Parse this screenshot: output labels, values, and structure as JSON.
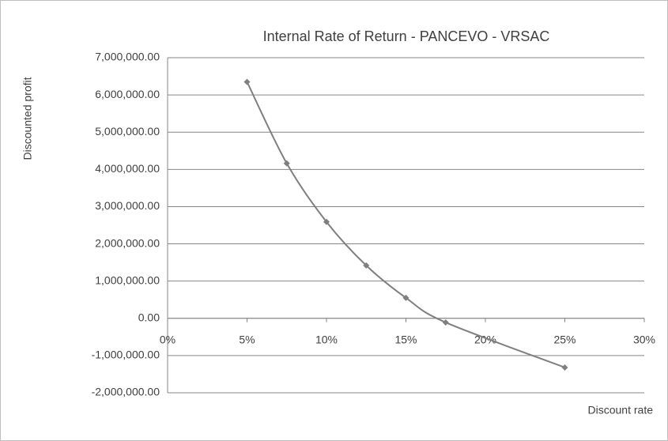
{
  "chart_data": {
    "type": "line",
    "title": "Internal Rate of Return - PANCEVO - VRSAC",
    "x_label": "Discount rate",
    "y_label": "Discounted profit",
    "x": [
      5,
      7.5,
      10,
      12.5,
      15,
      17.5,
      25
    ],
    "series": [
      {
        "color": "#7f7f7f",
        "values": [
          6350000,
          4160000,
          2590000,
          1420000,
          550000,
          -110000,
          -1320000
        ]
      }
    ],
    "xlim": [
      0,
      30
    ],
    "xticks": [
      {
        "value": 0,
        "label": "0%"
      },
      {
        "value": 5,
        "label": "5%"
      },
      {
        "value": 10,
        "label": "10%"
      },
      {
        "value": 15,
        "label": "15%"
      },
      {
        "value": 20,
        "label": "20%"
      },
      {
        "value": 25,
        "label": "25%"
      },
      {
        "value": 30,
        "label": "30%"
      }
    ],
    "ylim": [
      -2000000,
      7000000
    ],
    "yticks": [
      {
        "value": -2000000,
        "label": "-2,000,000.00"
      },
      {
        "value": -1000000,
        "label": "-1,000,000.00"
      },
      {
        "value": 0,
        "label": "0.00"
      },
      {
        "value": 1000000,
        "label": "1,000,000.00"
      },
      {
        "value": 2000000,
        "label": "2,000,000.00"
      },
      {
        "value": 3000000,
        "label": "3,000,000.00"
      },
      {
        "value": 4000000,
        "label": "4,000,000.00"
      },
      {
        "value": 5000000,
        "label": "5,000,000.00"
      },
      {
        "value": 6000000,
        "label": "6,000,000.00"
      },
      {
        "value": 7000000,
        "label": "7,000,000.00"
      }
    ],
    "grid": true,
    "smooth": true
  }
}
